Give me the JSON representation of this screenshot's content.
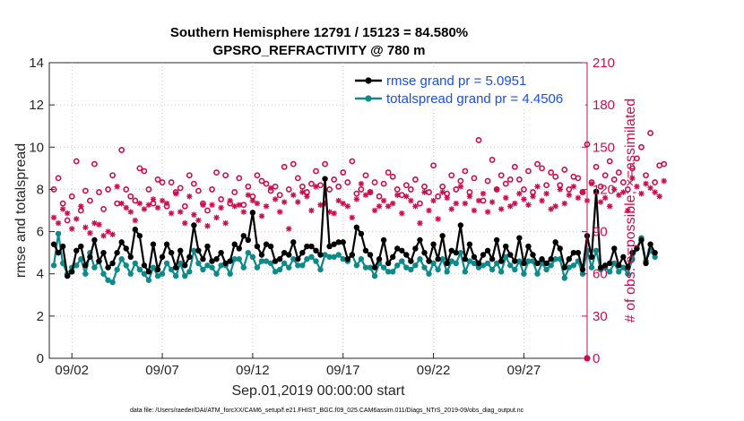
{
  "title_line1": "Southern Hemisphere 12791 / 15123 = 84.580%",
  "title_line2": "GPSRO_REFRACTIVITY @ 780 m",
  "ylabel_left": "rmse and totalspread",
  "ylabel_right": "# of obs: o=possible; ×=assimilated",
  "xlabel": "Sep.01,2019 00:00:00 start",
  "footer": "data file: /Users/raeder/DAI/ATM_forcXX/CAM6_setup/f.e21.FHIST_BGC.f09_025.CAM6assim.011/Diags_NTrS_2019-09/obs_diag_output.nc",
  "colors": {
    "rmse": "#000000",
    "spread": "#0f8a8a",
    "obs": "#cc0c4e",
    "legend_text": "#1a4fe0"
  },
  "chart_data": {
    "type": "line",
    "title": "Southern Hemisphere 12791 / 15123 = 84.580% — GPSRO_REFRACTIVITY @ 780 m",
    "xlabel": "Sep.01,2019 00:00:00 start",
    "ylabel": "rmse and totalspread",
    "y2label": "# of obs: o=possible; ×=assimilated",
    "xlim": [
      0.75,
      30.5
    ],
    "ylim": [
      0,
      14
    ],
    "y2lim": [
      0,
      210
    ],
    "xticks": [
      2,
      7,
      12,
      17,
      22,
      27
    ],
    "xtick_labels": [
      "09/02",
      "09/07",
      "09/12",
      "09/17",
      "09/22",
      "09/27"
    ],
    "yticks": [
      0,
      2,
      4,
      6,
      8,
      10,
      12,
      14
    ],
    "y2ticks": [
      0,
      30,
      60,
      90,
      120,
      150,
      180,
      210
    ],
    "legend": [
      "rmse grand pr = 5.0951",
      "totalspread grand pr = 4.4506"
    ],
    "legend_position": "top-right",
    "x_start": 1.0,
    "x_step": 0.25,
    "series": [
      {
        "name": "rmse grand pr = 5.0951",
        "axis": "left",
        "marker": "circle",
        "values": [
          5.4,
          5.0,
          5.3,
          3.9,
          4.1,
          5.1,
          5.3,
          4.4,
          4.8,
          5.6,
          4.6,
          5.0,
          4.3,
          4.5,
          5.0,
          5.5,
          5.2,
          4.8,
          6.1,
          5.8,
          4.4,
          4.1,
          5.4,
          4.2,
          4.8,
          5.4,
          5.0,
          4.3,
          5.1,
          4.4,
          4.8,
          6.3,
          5.1,
          4.7,
          5.3,
          4.6,
          4.7,
          5.0,
          4.5,
          4.6,
          5.4,
          5.2,
          5.8,
          5.6,
          6.9,
          5.3,
          4.9,
          5.4,
          5.3,
          4.6,
          4.7,
          5.0,
          4.9,
          5.5,
          4.7,
          5.0,
          5.3,
          5.3,
          5.1,
          4.9,
          8.5,
          5.3,
          5.4,
          5.5,
          5.5,
          4.7,
          4.9,
          6.2,
          5.9,
          5.1,
          4.9,
          4.3,
          4.7,
          5.6,
          4.5,
          4.8,
          5.2,
          5.1,
          4.9,
          4.6,
          5.2,
          5.6,
          5.0,
          4.6,
          5.4,
          4.7,
          5.8,
          4.5,
          5.1,
          5.0,
          6.3,
          4.7,
          5.4,
          4.8,
          4.5,
          4.9,
          5.1,
          4.7,
          5.6,
          4.6,
          5.3,
          4.9,
          4.6,
          5.7,
          4.5,
          5.3,
          4.9,
          4.5,
          4.7,
          4.5,
          4.7,
          5.5,
          5.2,
          4.3,
          4.7,
          5.0,
          5.0,
          4.2,
          5.8,
          4.8,
          7.9,
          4.3,
          4.4,
          4.5,
          5.2,
          4.4,
          4.8,
          4.3,
          5.0,
          5.2,
          5.6,
          4.5,
          5.4,
          5.0
        ]
      },
      {
        "name": "totalspread grand pr = 4.4506",
        "axis": "left",
        "marker": "circle",
        "values": [
          4.4,
          5.9,
          4.5,
          4.0,
          4.3,
          4.4,
          4.7,
          4.0,
          5.0,
          4.3,
          4.6,
          4.0,
          3.7,
          3.6,
          4.2,
          4.7,
          4.4,
          4.0,
          4.5,
          4.2,
          4.0,
          3.7,
          4.3,
          3.9,
          4.0,
          4.5,
          4.2,
          3.9,
          4.5,
          3.9,
          4.1,
          5.1,
          4.5,
          4.2,
          4.4,
          4.3,
          4.0,
          4.4,
          4.4,
          4.0,
          4.7,
          4.7,
          4.3,
          5.0,
          4.8,
          4.3,
          4.6,
          4.6,
          4.5,
          4.1,
          4.2,
          4.5,
          4.3,
          4.7,
          4.4,
          4.4,
          4.7,
          4.8,
          4.6,
          4.2,
          4.9,
          4.8,
          4.8,
          4.9,
          4.7,
          4.6,
          4.9,
          4.4,
          4.7,
          4.3,
          4.3,
          3.9,
          4.5,
          4.3,
          4.1,
          4.1,
          4.4,
          4.6,
          4.3,
          4.2,
          4.4,
          4.7,
          4.3,
          4.0,
          4.5,
          4.2,
          4.7,
          4.1,
          4.6,
          4.5,
          5.0,
          4.1,
          4.6,
          4.5,
          4.3,
          4.4,
          4.5,
          4.2,
          4.5,
          4.1,
          4.8,
          4.4,
          4.2,
          4.6,
          4.0,
          4.6,
          4.6,
          4.0,
          4.5,
          4.2,
          4.4,
          4.7,
          4.7,
          3.8,
          4.3,
          4.4,
          4.6,
          4.0,
          5.1,
          4.3,
          5.1,
          4.2,
          4.3,
          4.1,
          4.5,
          4.1,
          4.3,
          4.0,
          4.7,
          5.2,
          5.7,
          4.6,
          5.1,
          4.8
        ]
      },
      {
        "name": "possible",
        "axis": "right",
        "marker": "o",
        "values": [
          120,
          128,
          110,
          98,
          115,
          140,
          105,
          119,
          112,
          138,
          118,
          106,
          120,
          130,
          110,
          148,
          120,
          115,
          112,
          135,
          133,
          120,
          110,
          127,
          125,
          108,
          125,
          118,
          121,
          108,
          130,
          124,
          119,
          110,
          105,
          120,
          132,
          113,
          130,
          110,
          118,
          128,
          109,
          122,
          115,
          130,
          126,
          124,
          119,
          122,
          116,
          136,
          120,
          138,
          128,
          122,
          118,
          124,
          133,
          123,
          138,
          120,
          127,
          122,
          132,
          125,
          140,
          117,
          120,
          130,
          118,
          125,
          115,
          124,
          132,
          129,
          120,
          116,
          123,
          120,
          127,
          110,
          122,
          118,
          137,
          115,
          122,
          117,
          130,
          120,
          126,
          133,
          118,
          128,
          155,
          112,
          126,
          141,
          120,
          130,
          124,
          127,
          136,
          127,
          120,
          133,
          118,
          138,
          135,
          123,
          132,
          129,
          123,
          134,
          120,
          129,
          128,
          118,
          152,
          125,
          136,
          122,
          130,
          140,
          127,
          132,
          125,
          120,
          135,
          142,
          150,
          130,
          160,
          125,
          137,
          138
        ]
      },
      {
        "name": "assimilated",
        "axis": "right",
        "marker": "x",
        "values": [
          100,
          96,
          106,
          103,
          92,
          99,
          108,
          93,
          89,
          96,
          95,
          87,
          90,
          88,
          122,
          110,
          107,
          104,
          98,
          110,
          106,
          109,
          113,
          107,
          112,
          110,
          103,
          117,
          104,
          96,
          115,
          102,
          98,
          109,
          94,
          109,
          100,
          107,
          96,
          112,
          108,
          109,
          104,
          116,
          112,
          110,
          101,
          108,
          121,
          113,
          104,
          111,
          92,
          116,
          111,
          118,
          115,
          105,
          122,
          109,
          110,
          104,
          103,
          112,
          110,
          108,
          100,
          113,
          124,
          116,
          118,
          105,
          108,
          112,
          108,
          110,
          116,
          103,
          115,
          112,
          108,
          96,
          118,
          105,
          112,
          99,
          118,
          114,
          106,
          110,
          122,
          110,
          115,
          105,
          112,
          117,
          104,
          111,
          120,
          106,
          114,
          108,
          110,
          117,
          113,
          109,
          115,
          122,
          112,
          117,
          106,
          108,
          120,
          110,
          116,
          122,
          114,
          118,
          112,
          124,
          118,
          111,
          114,
          108,
          120,
          116,
          118,
          105,
          128,
          122,
          117,
          124,
          121,
          118,
          115,
          126
        ]
      }
    ]
  }
}
